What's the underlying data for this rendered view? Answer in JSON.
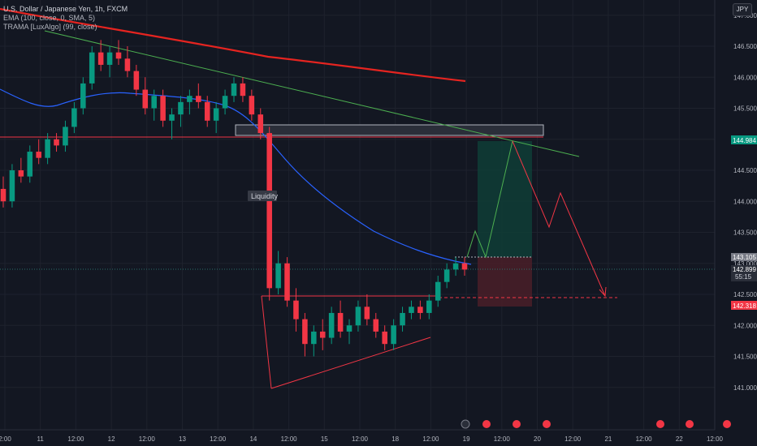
{
  "header": {
    "symbol_line": "U.S. Dollar / Japanese Yen, 1h, FXCM",
    "indicator_ema": "EMA (100, close, 0, SMA, 5)",
    "indicator_trama": "TRAMA [LuxAlgo] (99, close)",
    "currency": "JPY"
  },
  "chart_data": {
    "type": "candlestick",
    "x_tick_labels": [
      "2:00",
      "11",
      "12:00",
      "12",
      "12:00",
      "13",
      "12:00",
      "14",
      "12:00",
      "15",
      "12:00",
      "18",
      "12:00",
      "19",
      "12:00",
      "20",
      "12:00",
      "21",
      "12:00",
      "22",
      "12:00"
    ],
    "y_tick_labels": [
      "141.000",
      "141.500",
      "142.000",
      "142.500",
      "143.000",
      "143.500",
      "144.000",
      "144.500",
      "145.000",
      "145.500",
      "146.000",
      "146.500",
      "147.000"
    ],
    "ylim": [
      140.45,
      147.2
    ],
    "price_tags": {
      "target": {
        "text": "144.984",
        "value": 144.984,
        "color": "#089981"
      },
      "entry": {
        "text": "143.105",
        "value": 143.105,
        "color": "#787b86"
      },
      "current": {
        "text": "142.899",
        "value": 142.899,
        "color": "#2a2e39"
      },
      "countdown": "55:15",
      "stop": {
        "text": "142.318",
        "value": 142.318,
        "color": "#f23645"
      }
    },
    "annotations": {
      "liquidity_label": "Liquidity"
    },
    "ohlc": [
      [
        144.2,
        144.4,
        143.9,
        144.0
      ],
      [
        144.0,
        144.6,
        143.9,
        144.5
      ],
      [
        144.5,
        144.7,
        144.3,
        144.4
      ],
      [
        144.4,
        144.9,
        144.3,
        144.8
      ],
      [
        144.8,
        145.0,
        144.6,
        144.7
      ],
      [
        144.7,
        145.1,
        144.6,
        145.0
      ],
      [
        145.0,
        145.1,
        144.8,
        144.9
      ],
      [
        144.9,
        145.3,
        144.8,
        145.2
      ],
      [
        145.2,
        145.6,
        145.1,
        145.5
      ],
      [
        145.5,
        146.0,
        145.4,
        145.9
      ],
      [
        145.9,
        146.5,
        145.8,
        146.4
      ],
      [
        146.4,
        146.6,
        146.1,
        146.2
      ],
      [
        146.2,
        146.5,
        146.0,
        146.4
      ],
      [
        146.4,
        146.6,
        146.2,
        146.3
      ],
      [
        146.3,
        146.5,
        146.0,
        146.1
      ],
      [
        146.1,
        146.2,
        145.7,
        145.8
      ],
      [
        145.8,
        146.0,
        145.4,
        145.5
      ],
      [
        145.5,
        145.8,
        145.3,
        145.7
      ],
      [
        145.7,
        145.8,
        145.2,
        145.3
      ],
      [
        145.3,
        145.5,
        145.0,
        145.4
      ],
      [
        145.4,
        145.7,
        145.2,
        145.6
      ],
      [
        145.6,
        145.8,
        145.4,
        145.7
      ],
      [
        145.7,
        145.9,
        145.5,
        145.6
      ],
      [
        145.6,
        145.7,
        145.2,
        145.3
      ],
      [
        145.3,
        145.6,
        145.1,
        145.5
      ],
      [
        145.5,
        145.8,
        145.4,
        145.7
      ],
      [
        145.7,
        146.0,
        145.6,
        145.9
      ],
      [
        145.9,
        146.0,
        145.6,
        145.7
      ],
      [
        145.7,
        145.8,
        145.3,
        145.4
      ],
      [
        145.4,
        145.5,
        145.0,
        145.1
      ],
      [
        145.1,
        145.2,
        142.4,
        142.6
      ],
      [
        142.6,
        143.2,
        142.5,
        143.0
      ],
      [
        143.0,
        143.1,
        142.3,
        142.4
      ],
      [
        142.4,
        142.6,
        141.9,
        142.1
      ],
      [
        142.1,
        142.2,
        141.5,
        141.7
      ],
      [
        141.7,
        142.0,
        141.5,
        141.9
      ],
      [
        141.9,
        142.1,
        141.6,
        141.8
      ],
      [
        141.8,
        142.3,
        141.7,
        142.2
      ],
      [
        142.2,
        142.4,
        141.8,
        141.9
      ],
      [
        141.9,
        142.1,
        141.7,
        142.0
      ],
      [
        142.0,
        142.4,
        141.9,
        142.3
      ],
      [
        142.3,
        142.5,
        142.0,
        142.1
      ],
      [
        142.1,
        142.2,
        141.8,
        141.9
      ],
      [
        141.9,
        142.0,
        141.6,
        141.7
      ],
      [
        141.7,
        142.1,
        141.6,
        142.0
      ],
      [
        142.0,
        142.3,
        141.9,
        142.2
      ],
      [
        142.2,
        142.4,
        142.1,
        142.3
      ],
      [
        142.3,
        142.4,
        142.1,
        142.2
      ],
      [
        142.2,
        142.5,
        142.1,
        142.4
      ],
      [
        142.4,
        142.8,
        142.3,
        142.7
      ],
      [
        142.7,
        143.0,
        142.6,
        142.9
      ],
      [
        142.9,
        143.1,
        142.8,
        143.0
      ],
      [
        143.0,
        143.1,
        142.8,
        142.9
      ]
    ]
  }
}
